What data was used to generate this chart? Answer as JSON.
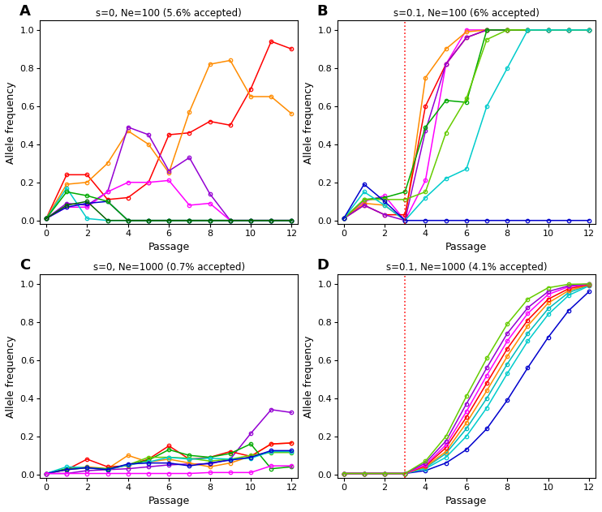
{
  "panels": [
    {
      "label": "A",
      "title": "s=0, Ne=100 (5.6% accepted)",
      "has_vline": false,
      "trajectories": [
        {
          "color": "#FF0000",
          "y": [
            0.01,
            0.24,
            0.24,
            0.11,
            0.12,
            0.2,
            0.45,
            0.46,
            0.52,
            0.5,
            0.69,
            0.94,
            0.9
          ]
        },
        {
          "color": "#FF8C00",
          "y": [
            0.01,
            0.19,
            0.2,
            0.3,
            0.47,
            0.4,
            0.25,
            0.57,
            0.82,
            0.84,
            0.65,
            0.65,
            0.56
          ]
        },
        {
          "color": "#9400D3",
          "y": [
            0.01,
            0.09,
            0.08,
            0.15,
            0.49,
            0.45,
            0.26,
            0.33,
            0.14,
            0.0,
            0.0,
            0.0,
            0.0
          ]
        },
        {
          "color": "#FF00FF",
          "y": [
            0.01,
            0.07,
            0.07,
            0.15,
            0.2,
            0.2,
            0.21,
            0.08,
            0.09,
            0.0,
            0.0,
            0.0,
            0.0
          ]
        },
        {
          "color": "#00CCCC",
          "y": [
            0.01,
            0.17,
            0.01,
            0.0,
            0.0,
            0.0,
            0.0,
            0.0,
            0.0,
            0.0,
            0.0,
            0.0,
            0.0
          ]
        },
        {
          "color": "#0000CD",
          "y": [
            0.01,
            0.07,
            0.09,
            0.1,
            0.0,
            0.0,
            0.0,
            0.0,
            0.0,
            0.0,
            0.0,
            0.0,
            0.0
          ]
        },
        {
          "color": "#00AA00",
          "y": [
            0.01,
            0.15,
            0.13,
            0.1,
            0.0,
            0.0,
            0.0,
            0.0,
            0.0,
            0.0,
            0.0,
            0.0,
            0.0
          ]
        },
        {
          "color": "#006400",
          "y": [
            0.01,
            0.08,
            0.1,
            0.0,
            0.0,
            0.0,
            0.0,
            0.0,
            0.0,
            0.0,
            0.0,
            0.0,
            0.0
          ]
        }
      ]
    },
    {
      "label": "B",
      "title": "s=0.1, Ne=100 (6% accepted)",
      "has_vline": true,
      "vline_x": 3.0,
      "trajectories": [
        {
          "color": "#FF00FF",
          "y": [
            0.01,
            0.1,
            0.13,
            0.0,
            0.21,
            0.82,
            1.0,
            1.0,
            1.0,
            1.0,
            1.0,
            1.0,
            1.0
          ]
        },
        {
          "color": "#FF8C00",
          "y": [
            0.01,
            0.09,
            0.08,
            0.0,
            0.75,
            0.9,
            0.99,
            1.0,
            1.0,
            1.0,
            1.0,
            1.0,
            1.0
          ]
        },
        {
          "color": "#FF0000",
          "y": [
            0.01,
            0.08,
            0.03,
            0.03,
            0.6,
            0.82,
            0.96,
            1.0,
            1.0,
            1.0,
            1.0,
            1.0,
            1.0
          ]
        },
        {
          "color": "#9400D3",
          "y": [
            0.01,
            0.08,
            0.03,
            0.0,
            0.47,
            0.82,
            0.96,
            1.0,
            1.0,
            1.0,
            1.0,
            1.0,
            1.0
          ]
        },
        {
          "color": "#00AA00",
          "y": [
            0.01,
            0.11,
            0.12,
            0.15,
            0.49,
            0.63,
            0.62,
            1.0,
            1.0,
            1.0,
            1.0,
            1.0,
            1.0
          ]
        },
        {
          "color": "#66CC00",
          "y": [
            0.01,
            0.11,
            0.11,
            0.11,
            0.15,
            0.46,
            0.64,
            0.95,
            1.0,
            1.0,
            1.0,
            1.0,
            1.0
          ]
        },
        {
          "color": "#00CCCC",
          "y": [
            0.01,
            0.15,
            0.08,
            0.0,
            0.12,
            0.22,
            0.27,
            0.6,
            0.8,
            1.0,
            1.0,
            1.0,
            1.0
          ]
        },
        {
          "color": "#0000CD",
          "y": [
            0.01,
            0.19,
            0.1,
            0.0,
            0.0,
            0.0,
            0.0,
            0.0,
            0.0,
            0.0,
            0.0,
            0.0,
            0.0
          ]
        }
      ]
    },
    {
      "label": "C",
      "title": "s=0, Ne=1000 (0.7% accepted)",
      "has_vline": false,
      "trajectories": [
        {
          "color": "#9400D3",
          "y": [
            0.005,
            0.005,
            0.02,
            0.025,
            0.03,
            0.04,
            0.05,
            0.055,
            0.055,
            0.08,
            0.215,
            0.34,
            0.325
          ]
        },
        {
          "color": "#FF8C00",
          "y": [
            0.005,
            0.03,
            0.04,
            0.03,
            0.1,
            0.065,
            0.08,
            0.06,
            0.04,
            0.06,
            0.095,
            0.16,
            0.165
          ]
        },
        {
          "color": "#FF0000",
          "y": [
            0.005,
            0.025,
            0.08,
            0.04,
            0.045,
            0.08,
            0.15,
            0.08,
            0.09,
            0.12,
            0.095,
            0.16,
            0.165
          ]
        },
        {
          "color": "#00AA00",
          "y": [
            0.005,
            0.03,
            0.035,
            0.03,
            0.05,
            0.075,
            0.13,
            0.1,
            0.09,
            0.11,
            0.16,
            0.03,
            0.04
          ]
        },
        {
          "color": "#66CC00",
          "y": [
            0.005,
            0.025,
            0.035,
            0.025,
            0.05,
            0.09,
            0.09,
            0.085,
            0.07,
            0.08,
            0.1,
            0.115,
            0.115
          ]
        },
        {
          "color": "#00CCCC",
          "y": [
            0.005,
            0.04,
            0.035,
            0.025,
            0.05,
            0.065,
            0.09,
            0.08,
            0.085,
            0.08,
            0.085,
            0.12,
            0.12
          ]
        },
        {
          "color": "#0000CD",
          "y": [
            0.005,
            0.025,
            0.035,
            0.025,
            0.055,
            0.06,
            0.06,
            0.045,
            0.06,
            0.075,
            0.09,
            0.125,
            0.125
          ]
        },
        {
          "color": "#FF00FF",
          "y": [
            0.005,
            0.005,
            0.005,
            0.005,
            0.005,
            0.005,
            0.005,
            0.005,
            0.01,
            0.01,
            0.01,
            0.045,
            0.045
          ]
        }
      ]
    },
    {
      "label": "D",
      "title": "s=0.1, Ne=1000 (4.1% accepted)",
      "has_vline": true,
      "vline_x": 3.0,
      "trajectories": [
        {
          "color": "#0000CD",
          "y": [
            0.005,
            0.005,
            0.005,
            0.005,
            0.02,
            0.06,
            0.13,
            0.24,
            0.39,
            0.56,
            0.72,
            0.86,
            0.96
          ]
        },
        {
          "color": "#00CCCC",
          "y": [
            0.005,
            0.005,
            0.005,
            0.005,
            0.03,
            0.09,
            0.2,
            0.35,
            0.53,
            0.7,
            0.84,
            0.94,
            0.99
          ]
        },
        {
          "color": "#00BBBB",
          "y": [
            0.005,
            0.005,
            0.005,
            0.005,
            0.035,
            0.11,
            0.24,
            0.4,
            0.58,
            0.74,
            0.87,
            0.955,
            0.993
          ]
        },
        {
          "color": "#FF8C00",
          "y": [
            0.005,
            0.005,
            0.005,
            0.005,
            0.04,
            0.12,
            0.27,
            0.44,
            0.62,
            0.78,
            0.9,
            0.965,
            0.995
          ]
        },
        {
          "color": "#FF0000",
          "y": [
            0.005,
            0.005,
            0.005,
            0.005,
            0.045,
            0.14,
            0.3,
            0.48,
            0.66,
            0.81,
            0.92,
            0.975,
            0.997
          ]
        },
        {
          "color": "#FF00FF",
          "y": [
            0.005,
            0.005,
            0.005,
            0.005,
            0.05,
            0.155,
            0.33,
            0.52,
            0.7,
            0.845,
            0.945,
            0.985,
            0.999
          ]
        },
        {
          "color": "#9400D3",
          "y": [
            0.005,
            0.005,
            0.005,
            0.005,
            0.06,
            0.175,
            0.37,
            0.56,
            0.74,
            0.875,
            0.96,
            0.99,
            1.0
          ]
        },
        {
          "color": "#66CC00",
          "y": [
            0.005,
            0.005,
            0.005,
            0.005,
            0.07,
            0.2,
            0.41,
            0.61,
            0.79,
            0.92,
            0.98,
            0.998,
            1.0
          ]
        }
      ]
    }
  ],
  "x_values": [
    0,
    1,
    2,
    3,
    4,
    5,
    6,
    7,
    8,
    9,
    10,
    11,
    12
  ],
  "xlabel": "Passage",
  "ylabel": "Allele frequency",
  "ylim": [
    -0.02,
    1.05
  ],
  "xlim": [
    -0.3,
    12.3
  ],
  "xticks": [
    0,
    2,
    4,
    6,
    8,
    10,
    12
  ],
  "yticks": [
    0.0,
    0.2,
    0.4,
    0.6,
    0.8,
    1.0
  ],
  "ytick_labels": [
    "0.0",
    "0.2",
    "0.4",
    "0.6",
    "0.8",
    "1.0"
  ]
}
